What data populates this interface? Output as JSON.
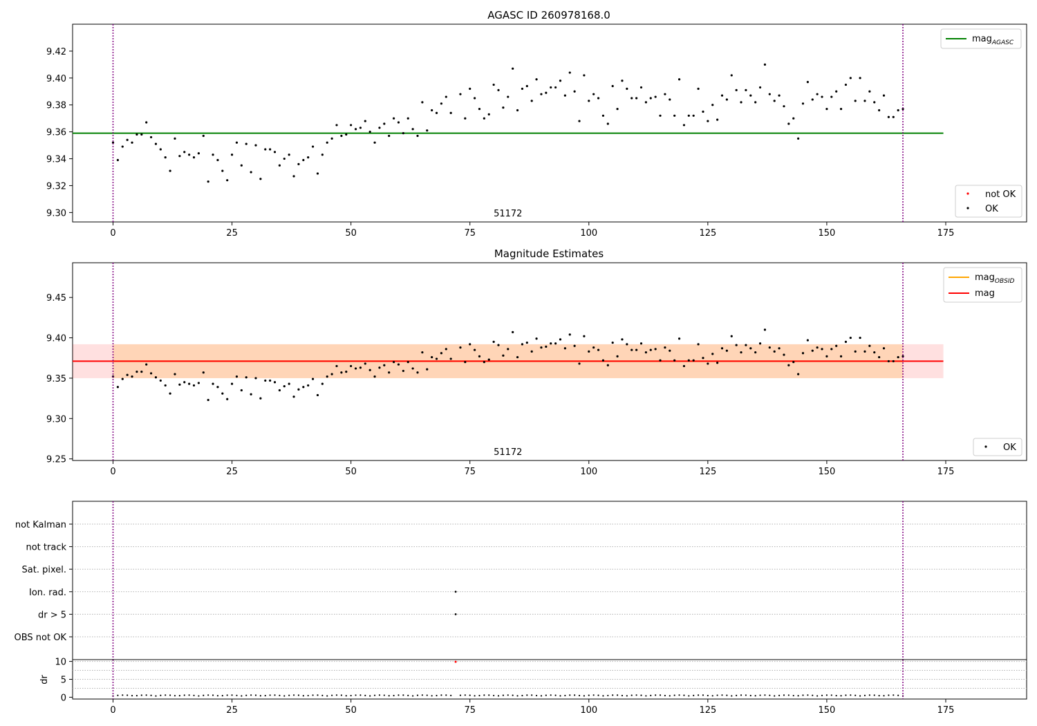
{
  "chart_data": [
    {
      "type": "scatter",
      "title": "AGASC ID 260978168.0",
      "xlim": [
        -8.5,
        192
      ],
      "ylim": [
        9.293,
        9.44
      ],
      "xticks": [
        0,
        25,
        50,
        75,
        100,
        125,
        150,
        175
      ],
      "yticks": [
        9.3,
        9.32,
        9.34,
        9.36,
        9.38,
        9.4,
        9.42
      ],
      "ytick_labels": [
        "9.30",
        "9.32",
        "9.34",
        "9.36",
        "9.38",
        "9.40",
        "9.42"
      ],
      "annotation": {
        "text": "51172",
        "x": 83
      },
      "vlines": [
        0,
        166
      ],
      "mag_agasc": 9.359,
      "line_xrange": [
        -8.5,
        174.5
      ],
      "ok_points": [
        [
          0,
          9.352
        ],
        [
          1,
          9.339
        ],
        [
          2,
          9.349
        ],
        [
          3,
          9.354
        ],
        [
          4,
          9.352
        ],
        [
          5,
          9.358
        ],
        [
          6,
          9.358
        ],
        [
          7,
          9.367
        ],
        [
          8,
          9.356
        ],
        [
          9,
          9.351
        ],
        [
          10,
          9.347
        ],
        [
          11,
          9.341
        ],
        [
          12,
          9.331
        ],
        [
          13,
          9.355
        ],
        [
          14,
          9.342
        ],
        [
          15,
          9.345
        ],
        [
          16,
          9.343
        ],
        [
          17,
          9.341
        ],
        [
          18,
          9.344
        ],
        [
          19,
          9.357
        ],
        [
          20,
          9.323
        ],
        [
          21,
          9.343
        ],
        [
          22,
          9.339
        ],
        [
          23,
          9.331
        ],
        [
          24,
          9.324
        ],
        [
          25,
          9.343
        ],
        [
          26,
          9.352
        ],
        [
          27,
          9.335
        ],
        [
          28,
          9.351
        ],
        [
          29,
          9.33
        ],
        [
          30,
          9.35
        ],
        [
          31,
          9.325
        ],
        [
          32,
          9.347
        ],
        [
          33,
          9.347
        ],
        [
          34,
          9.345
        ],
        [
          35,
          9.335
        ],
        [
          36,
          9.34
        ],
        [
          37,
          9.343
        ],
        [
          38,
          9.327
        ],
        [
          39,
          9.336
        ],
        [
          40,
          9.339
        ],
        [
          41,
          9.341
        ],
        [
          42,
          9.349
        ],
        [
          43,
          9.329
        ],
        [
          44,
          9.343
        ],
        [
          45,
          9.352
        ],
        [
          46,
          9.355
        ],
        [
          47,
          9.365
        ],
        [
          48,
          9.357
        ],
        [
          49,
          9.358
        ],
        [
          50,
          9.365
        ],
        [
          51,
          9.362
        ],
        [
          52,
          9.363
        ],
        [
          53,
          9.368
        ],
        [
          54,
          9.36
        ],
        [
          55,
          9.352
        ],
        [
          56,
          9.363
        ],
        [
          57,
          9.366
        ],
        [
          58,
          9.357
        ],
        [
          59,
          9.37
        ],
        [
          60,
          9.367
        ],
        [
          61,
          9.359
        ],
        [
          62,
          9.37
        ],
        [
          63,
          9.362
        ],
        [
          64,
          9.357
        ],
        [
          65,
          9.382
        ],
        [
          66,
          9.361
        ],
        [
          67,
          9.376
        ],
        [
          68,
          9.374
        ],
        [
          69,
          9.381
        ],
        [
          70,
          9.386
        ],
        [
          71,
          9.374
        ],
        [
          73,
          9.388
        ],
        [
          74,
          9.37
        ],
        [
          75,
          9.392
        ],
        [
          76,
          9.385
        ],
        [
          77,
          9.377
        ],
        [
          78,
          9.37
        ],
        [
          79,
          9.373
        ],
        [
          80,
          9.395
        ],
        [
          81,
          9.391
        ],
        [
          82,
          9.378
        ],
        [
          83,
          9.386
        ],
        [
          84,
          9.407
        ],
        [
          85,
          9.376
        ],
        [
          86,
          9.392
        ],
        [
          87,
          9.394
        ],
        [
          88,
          9.383
        ],
        [
          89,
          9.399
        ],
        [
          90,
          9.388
        ],
        [
          91,
          9.389
        ],
        [
          92,
          9.393
        ],
        [
          93,
          9.393
        ],
        [
          94,
          9.398
        ],
        [
          95,
          9.387
        ],
        [
          96,
          9.404
        ],
        [
          97,
          9.39
        ],
        [
          98,
          9.368
        ],
        [
          99,
          9.402
        ],
        [
          100,
          9.383
        ],
        [
          101,
          9.388
        ],
        [
          102,
          9.385
        ],
        [
          103,
          9.372
        ],
        [
          104,
          9.366
        ],
        [
          105,
          9.394
        ],
        [
          106,
          9.377
        ],
        [
          107,
          9.398
        ],
        [
          108,
          9.392
        ],
        [
          109,
          9.385
        ],
        [
          110,
          9.385
        ],
        [
          111,
          9.393
        ],
        [
          112,
          9.382
        ],
        [
          113,
          9.385
        ],
        [
          114,
          9.386
        ],
        [
          115,
          9.372
        ],
        [
          116,
          9.388
        ],
        [
          117,
          9.384
        ],
        [
          118,
          9.372
        ],
        [
          119,
          9.399
        ],
        [
          120,
          9.365
        ],
        [
          121,
          9.372
        ],
        [
          122,
          9.372
        ],
        [
          123,
          9.392
        ],
        [
          124,
          9.375
        ],
        [
          125,
          9.368
        ],
        [
          126,
          9.38
        ],
        [
          127,
          9.369
        ],
        [
          128,
          9.387
        ],
        [
          129,
          9.384
        ],
        [
          130,
          9.402
        ],
        [
          131,
          9.391
        ],
        [
          132,
          9.382
        ],
        [
          133,
          9.391
        ],
        [
          134,
          9.387
        ],
        [
          135,
          9.382
        ],
        [
          136,
          9.393
        ],
        [
          137,
          9.41
        ],
        [
          138,
          9.388
        ],
        [
          139,
          9.383
        ],
        [
          140,
          9.387
        ],
        [
          141,
          9.379
        ],
        [
          142,
          9.366
        ],
        [
          143,
          9.37
        ],
        [
          144,
          9.355
        ],
        [
          145,
          9.381
        ],
        [
          146,
          9.397
        ],
        [
          147,
          9.384
        ],
        [
          148,
          9.388
        ],
        [
          149,
          9.386
        ],
        [
          150,
          9.377
        ],
        [
          151,
          9.386
        ],
        [
          152,
          9.39
        ],
        [
          153,
          9.377
        ],
        [
          154,
          9.395
        ],
        [
          155,
          9.4
        ],
        [
          156,
          9.383
        ],
        [
          157,
          9.4
        ],
        [
          158,
          9.383
        ],
        [
          159,
          9.39
        ],
        [
          160,
          9.382
        ],
        [
          161,
          9.376
        ],
        [
          162,
          9.387
        ],
        [
          163,
          9.371
        ],
        [
          164,
          9.371
        ],
        [
          165,
          9.376
        ],
        [
          166,
          9.377
        ]
      ],
      "not_ok_points": [],
      "legend_upper": [
        {
          "base": "mag",
          "sub": "AGASC",
          "color": "#008000",
          "kind": "line"
        }
      ],
      "legend_lower": [
        {
          "label": "not OK",
          "color": "#ff0000",
          "kind": "dot"
        },
        {
          "label": "OK",
          "color": "#000000",
          "kind": "dot"
        }
      ]
    },
    {
      "type": "scatter",
      "title": "Magnitude Estimates",
      "xlim": [
        -8.5,
        192
      ],
      "ylim": [
        9.248,
        9.493
      ],
      "xticks": [
        0,
        25,
        50,
        75,
        100,
        125,
        150,
        175
      ],
      "yticks": [
        9.25,
        9.3,
        9.35,
        9.4,
        9.45
      ],
      "ytick_labels": [
        "9.25",
        "9.30",
        "9.35",
        "9.40",
        "9.45"
      ],
      "annotation": {
        "text": "51172",
        "x": 83
      },
      "vlines": [
        0,
        166
      ],
      "mag": 9.371,
      "mag_band": [
        9.35,
        9.392
      ],
      "obsid_band": [
        9.35,
        9.392
      ],
      "obsid_band_xrange": [
        0,
        166
      ],
      "line_xrange": [
        -8.5,
        174.5
      ],
      "legend_upper": [
        {
          "base": "mag",
          "sub": "OBSID",
          "color": "#ffa500",
          "kind": "line"
        },
        {
          "base": "mag",
          "sub": "",
          "color": "#ff0000",
          "kind": "line"
        }
      ],
      "legend_lower": [
        {
          "label": "OK",
          "color": "#000000",
          "kind": "dot"
        }
      ]
    },
    {
      "type": "scatter",
      "title": "",
      "xlim": [
        -8.5,
        192
      ],
      "categories": [
        "not Kalman",
        "not track",
        "Sat. pixel.",
        "Ion. rad.",
        "dr > 5",
        "OBS not OK"
      ],
      "flag_points": [
        {
          "x": 72,
          "category": "Ion. rad."
        },
        {
          "x": 72,
          "category": "dr > 5"
        }
      ],
      "vlines": [
        0,
        166
      ]
    },
    {
      "type": "scatter",
      "title": "",
      "xlim": [
        -8.5,
        192
      ],
      "ylim": [
        -0.5,
        10.5
      ],
      "xticks": [
        0,
        25,
        50,
        75,
        100,
        125,
        150,
        175
      ],
      "yticks": [
        0,
        5,
        10
      ],
      "ytick_labels": [
        "0",
        "5",
        "10"
      ],
      "ylabel": "dr",
      "vlines": [
        0,
        166
      ],
      "dr_outlier": {
        "x": 72,
        "y": 9.9
      }
    }
  ]
}
